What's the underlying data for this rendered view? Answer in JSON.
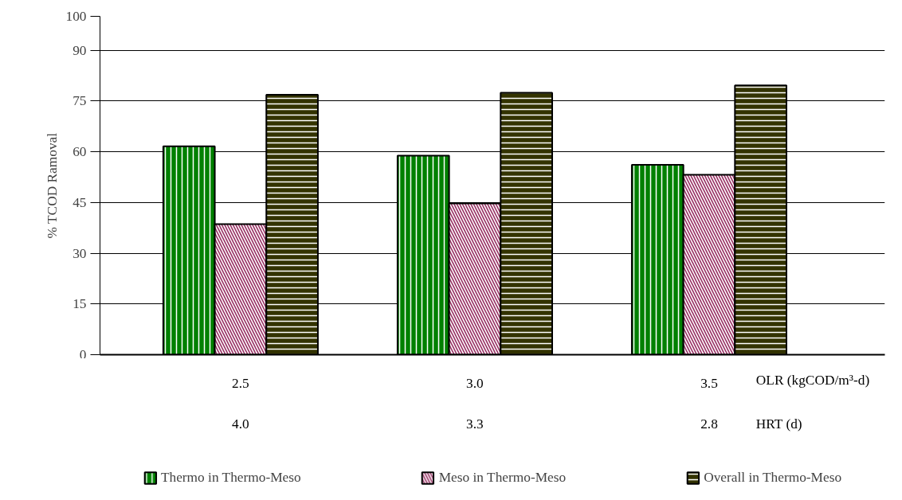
{
  "chart_data": {
    "type": "bar",
    "ylabel": "% TCOD Ramoval",
    "xlabel": "OLR (kgCOD/m³-d)",
    "categories": [
      "2.5",
      "3.0",
      "3.5"
    ],
    "series": [
      {
        "name": "Thermo in Thermo-Meso",
        "color": "#008000",
        "values": [
          61.6,
          58.8,
          56.1
        ]
      },
      {
        "name": "Meso in Thermo-Meso",
        "color": "#993366",
        "values": [
          38.6,
          44.7,
          53.2
        ]
      },
      {
        "name": "Overall in Thermo-Meso",
        "color": "#333300",
        "values": [
          76.8,
          77.4,
          79.6
        ]
      }
    ],
    "ylim": [
      0,
      100
    ],
    "yticks": [
      0,
      15,
      30,
      45,
      60,
      75,
      90,
      100
    ],
    "grid": "y",
    "legend": "bottom",
    "annotations": [
      "4.0",
      "3.3",
      "2.8",
      "HRT (d)"
    ]
  }
}
